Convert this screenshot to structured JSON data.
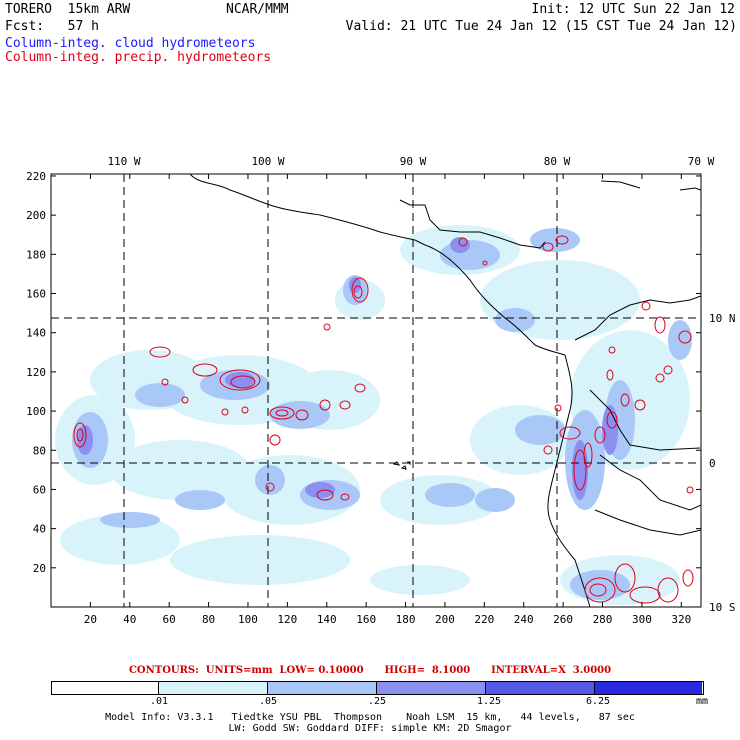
{
  "header": {
    "model": "TORERO  15km ARW",
    "org": "NCAR/MMM",
    "init": "Init: 12 UTC Sun 22 Jan 12",
    "fcst": "Fcst:   57 h",
    "valid": "Valid: 21 UTC Tue 24 Jan 12 (15 CST Tue 24 Jan 12)",
    "field1": "Column-integ. cloud hydrometeors",
    "field2": "Column-integ. precip. hydrometeors"
  },
  "map": {
    "x_ticks": [
      "20",
      "40",
      "60",
      "80",
      "100",
      "120",
      "140",
      "160",
      "180",
      "200",
      "220",
      "240",
      "260",
      "280",
      "300",
      "320"
    ],
    "y_ticks": [
      "20",
      "40",
      "60",
      "80",
      "100",
      "120",
      "140",
      "160",
      "180",
      "200",
      "220"
    ],
    "lon_labels": [
      "110 W",
      "100 W",
      "90 W",
      "80 W",
      "70 W"
    ],
    "lat_labels": [
      "10 N",
      "0",
      "10 S"
    ]
  },
  "contours": {
    "text": "CONTOURS:  UNITS=mm  LOW= 0.10000      HIGH=  8.1000      INTERVAL=X  3.0000"
  },
  "colorbar": {
    "colors": [
      "#ffffff",
      "#d8f4fa",
      "#a9c8f8",
      "#8a8ff0",
      "#5757e8",
      "#2a2ae0"
    ],
    "labels": [
      ".01",
      ".05",
      ".25",
      "1.25",
      "6.25"
    ],
    "units": "mm"
  },
  "footer": {
    "line1": "Model Info: V3.3.1   Tiedtke YSU PBL  Thompson    Noah LSM  15 km,   44 levels,   87 sec",
    "line2": "LW: Godd SW: Goddard DIFF: simple KM: 2D Smagor"
  }
}
